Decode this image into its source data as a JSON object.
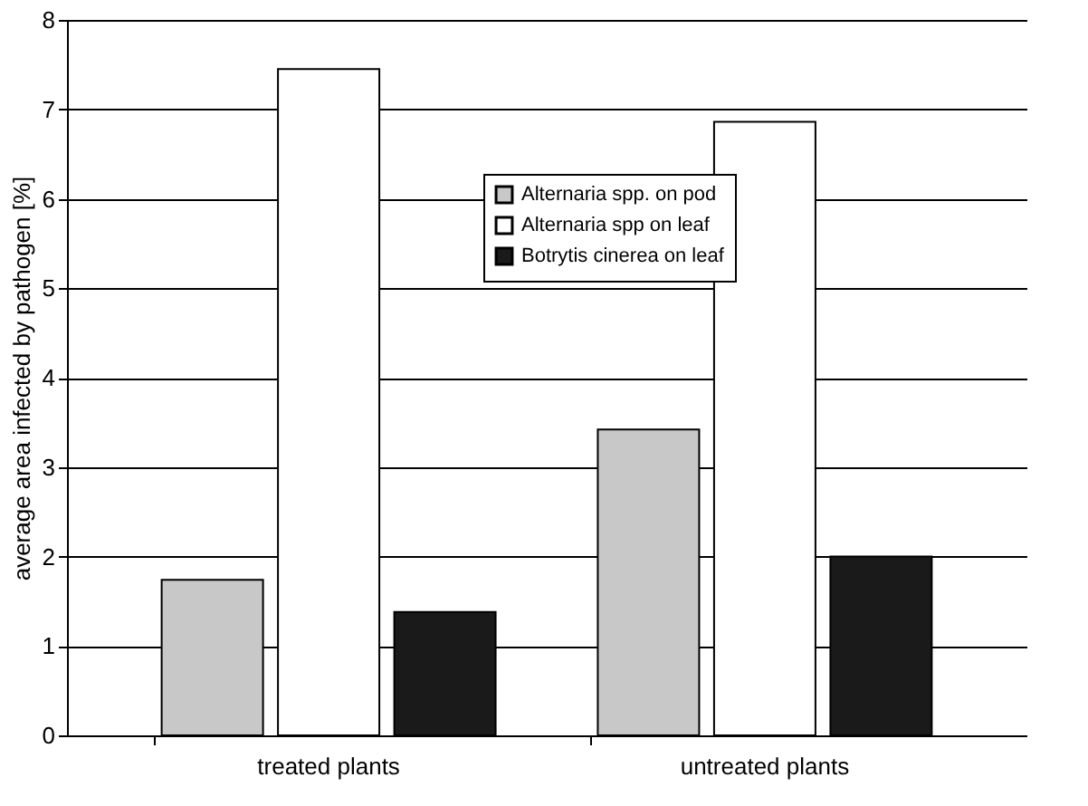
{
  "chart_data": {
    "type": "bar",
    "categories": [
      "treated plants",
      "untreated plants"
    ],
    "ylabel": "average area infected by pathogen [%]",
    "series": [
      {
        "name": "Alternaria spp. on pod",
        "color": "#c8c8c8",
        "values": [
          1.74,
          3.42
        ]
      },
      {
        "name": "Alternaria spp on leaf",
        "color": "#ffffff",
        "values": [
          7.45,
          6.86
        ]
      },
      {
        "name": "Botrytis cinerea on leaf",
        "color": "#1a1a1a",
        "values": [
          1.38,
          2.0
        ]
      }
    ],
    "ylim": [
      0,
      8
    ],
    "yticks": [
      0,
      1,
      2,
      3,
      4,
      5,
      6,
      7,
      8
    ],
    "grid": "y",
    "legend": "top"
  }
}
